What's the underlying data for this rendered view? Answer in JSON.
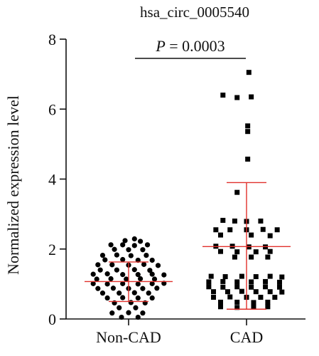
{
  "chart_data": {
    "type": "scatter",
    "title": "hsa_circ_0005540",
    "xlabel": "",
    "ylabel": "Normalized expression level",
    "categories": [
      "Non-CAD",
      "CAD"
    ],
    "ylim": [
      0,
      8
    ],
    "yticks": [
      0,
      2,
      4,
      6,
      8
    ],
    "grid": false,
    "annotation": {
      "p_symbol": "P",
      "p_rest": " = 0.0003"
    },
    "colors": {
      "points": "#000000",
      "error_bars": "#e0302b",
      "axes": "#111111"
    },
    "series": [
      {
        "name": "Non-CAD",
        "marker": "circle",
        "mean": 1.07,
        "sd_low": 0.5,
        "sd_high": 1.63,
        "points": [
          [
            0.05,
            2.29
          ],
          [
            -0.03,
            2.24
          ],
          [
            0.1,
            2.22
          ],
          [
            -0.15,
            2.12
          ],
          [
            -0.05,
            2.12
          ],
          [
            0.05,
            2.1
          ],
          [
            0.16,
            2.12
          ],
          [
            -0.12,
            1.99
          ],
          [
            0.0,
            1.98
          ],
          [
            0.12,
            1.98
          ],
          [
            -0.22,
            1.82
          ],
          [
            -0.1,
            1.83
          ],
          [
            0.02,
            1.81
          ],
          [
            0.15,
            1.82
          ],
          [
            -0.2,
            1.69
          ],
          [
            -0.05,
            1.7
          ],
          [
            0.08,
            1.68
          ],
          [
            0.2,
            1.68
          ],
          [
            -0.26,
            1.55
          ],
          [
            -0.14,
            1.55
          ],
          [
            0.0,
            1.54
          ],
          [
            0.13,
            1.56
          ],
          [
            0.25,
            1.53
          ],
          [
            -0.24,
            1.4
          ],
          [
            -0.1,
            1.4
          ],
          [
            0.05,
            1.41
          ],
          [
            0.18,
            1.39
          ],
          [
            -0.3,
            1.28
          ],
          [
            -0.18,
            1.29
          ],
          [
            -0.05,
            1.27
          ],
          [
            0.08,
            1.27
          ],
          [
            0.2,
            1.28
          ],
          [
            0.3,
            1.26
          ],
          [
            -0.27,
            1.14
          ],
          [
            -0.15,
            1.15
          ],
          [
            -0.02,
            1.14
          ],
          [
            0.1,
            1.15
          ],
          [
            0.22,
            1.14
          ],
          [
            -0.3,
            1.01
          ],
          [
            -0.18,
            1.0
          ],
          [
            -0.05,
            1.01
          ],
          [
            0.08,
            1.0
          ],
          [
            0.2,
            1.01
          ],
          [
            0.3,
            1.02
          ],
          [
            -0.26,
            0.87
          ],
          [
            -0.13,
            0.88
          ],
          [
            0.0,
            0.87
          ],
          [
            0.12,
            0.87
          ],
          [
            0.24,
            0.88
          ],
          [
            -0.22,
            0.74
          ],
          [
            -0.08,
            0.74
          ],
          [
            0.05,
            0.75
          ],
          [
            0.17,
            0.74
          ],
          [
            -0.18,
            0.6
          ],
          [
            -0.05,
            0.61
          ],
          [
            0.08,
            0.6
          ],
          [
            0.2,
            0.6
          ],
          [
            -0.12,
            0.46
          ],
          [
            0.02,
            0.47
          ],
          [
            0.14,
            0.46
          ],
          [
            -0.08,
            0.32
          ],
          [
            0.06,
            0.32
          ],
          [
            -0.14,
            0.17
          ],
          [
            0.0,
            0.18
          ],
          [
            0.12,
            0.17
          ],
          [
            -0.06,
            0.05
          ],
          [
            0.08,
            0.05
          ]
        ]
      },
      {
        "name": "CAD",
        "marker": "square",
        "mean": 2.07,
        "sd_low": 0.28,
        "sd_high": 3.9,
        "points": [
          [
            0.02,
            7.05
          ],
          [
            -0.2,
            6.4
          ],
          [
            -0.08,
            6.33
          ],
          [
            0.04,
            6.35
          ],
          [
            0.01,
            5.52
          ],
          [
            0.01,
            5.36
          ],
          [
            0.01,
            4.57
          ],
          [
            -0.08,
            3.62
          ],
          [
            -0.2,
            2.82
          ],
          [
            -0.1,
            2.8
          ],
          [
            0.0,
            2.79
          ],
          [
            0.12,
            2.8
          ],
          [
            -0.26,
            2.55
          ],
          [
            -0.14,
            2.55
          ],
          [
            0.0,
            2.55
          ],
          [
            0.14,
            2.56
          ],
          [
            0.26,
            2.55
          ],
          [
            -0.22,
            2.4
          ],
          [
            0.04,
            2.4
          ],
          [
            0.2,
            2.38
          ],
          [
            -0.26,
            2.08
          ],
          [
            -0.12,
            2.08
          ],
          [
            0.02,
            2.06
          ],
          [
            0.16,
            2.06
          ],
          [
            -0.22,
            1.93
          ],
          [
            -0.08,
            1.92
          ],
          [
            0.08,
            1.92
          ],
          [
            0.2,
            1.93
          ],
          [
            -0.1,
            1.77
          ],
          [
            0.04,
            1.77
          ],
          [
            0.18,
            1.77
          ],
          [
            -0.3,
            1.22
          ],
          [
            -0.18,
            1.21
          ],
          [
            -0.04,
            1.22
          ],
          [
            0.08,
            1.21
          ],
          [
            0.2,
            1.22
          ],
          [
            0.3,
            1.2
          ],
          [
            -0.32,
            1.06
          ],
          [
            -0.2,
            1.07
          ],
          [
            -0.08,
            1.06
          ],
          [
            0.04,
            1.06
          ],
          [
            0.16,
            1.07
          ],
          [
            0.28,
            1.05
          ],
          [
            -0.32,
            0.92
          ],
          [
            -0.2,
            0.91
          ],
          [
            -0.08,
            0.92
          ],
          [
            0.04,
            0.91
          ],
          [
            0.16,
            0.92
          ],
          [
            0.28,
            0.91
          ],
          [
            -0.28,
            0.78
          ],
          [
            -0.16,
            0.78
          ],
          [
            -0.04,
            0.79
          ],
          [
            0.08,
            0.78
          ],
          [
            0.2,
            0.78
          ],
          [
            0.3,
            0.77
          ],
          [
            -0.28,
            0.62
          ],
          [
            -0.14,
            0.63
          ],
          [
            0.0,
            0.62
          ],
          [
            0.12,
            0.62
          ],
          [
            0.24,
            0.62
          ],
          [
            -0.22,
            0.48
          ],
          [
            -0.08,
            0.48
          ],
          [
            0.06,
            0.47
          ],
          [
            0.18,
            0.48
          ],
          [
            -0.22,
            0.35
          ],
          [
            -0.08,
            0.33
          ],
          [
            0.06,
            0.34
          ],
          [
            0.18,
            0.35
          ]
        ]
      }
    ]
  }
}
